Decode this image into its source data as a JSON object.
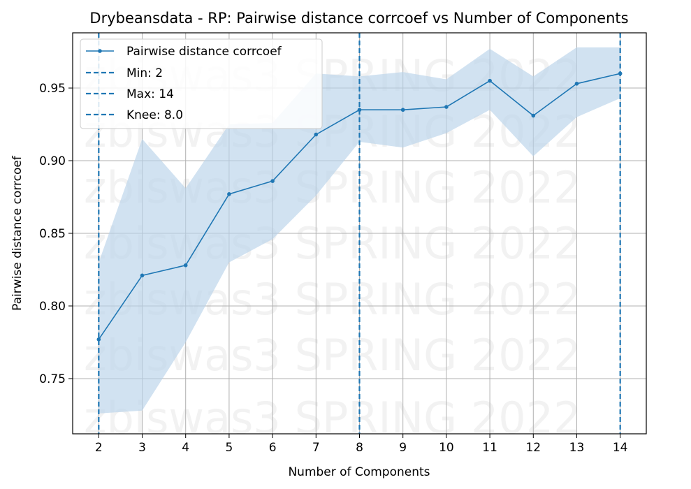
{
  "chart_data": {
    "type": "line",
    "title": "Drybeansdata - RP: Pairwise distance corrcoef vs Number of Components",
    "xlabel": "Number of Components",
    "ylabel": "Pairwise distance corrcoef",
    "x": [
      2,
      3,
      4,
      5,
      6,
      7,
      8,
      9,
      10,
      11,
      12,
      13,
      14
    ],
    "xlim": [
      1.4,
      14.6
    ],
    "ylim": [
      0.712,
      0.988
    ],
    "x_ticks": [
      "2",
      "3",
      "4",
      "5",
      "6",
      "7",
      "8",
      "9",
      "10",
      "11",
      "12",
      "13",
      "14"
    ],
    "y_ticks": [
      "0.75",
      "0.80",
      "0.85",
      "0.90",
      "0.95"
    ],
    "y_tick_values": [
      0.75,
      0.8,
      0.85,
      0.9,
      0.95
    ],
    "grid": true,
    "legend_position": "top-left",
    "series": [
      {
        "name": "Pairwise distance corrcoef",
        "values": [
          0.777,
          0.821,
          0.828,
          0.877,
          0.886,
          0.918,
          0.935,
          0.935,
          0.937,
          0.955,
          0.931,
          0.953,
          0.96
        ],
        "band_upper": [
          0.83,
          0.915,
          0.881,
          0.925,
          0.926,
          0.96,
          0.958,
          0.961,
          0.956,
          0.977,
          0.958,
          0.978,
          0.978
        ],
        "band_lower": [
          0.726,
          0.728,
          0.775,
          0.83,
          0.846,
          0.876,
          0.913,
          0.909,
          0.919,
          0.935,
          0.903,
          0.93,
          0.943
        ],
        "color": "#1f77b4",
        "band_color": "#b9d3ea"
      }
    ],
    "vlines": [
      {
        "name": "Min: 2",
        "x": 2
      },
      {
        "name": "Max: 14",
        "x": 14
      },
      {
        "name": "Knee: 8.0",
        "x": 8
      }
    ],
    "vline_color": "#1f77b4",
    "watermark": "zbiswas3 SPRING 2022"
  }
}
